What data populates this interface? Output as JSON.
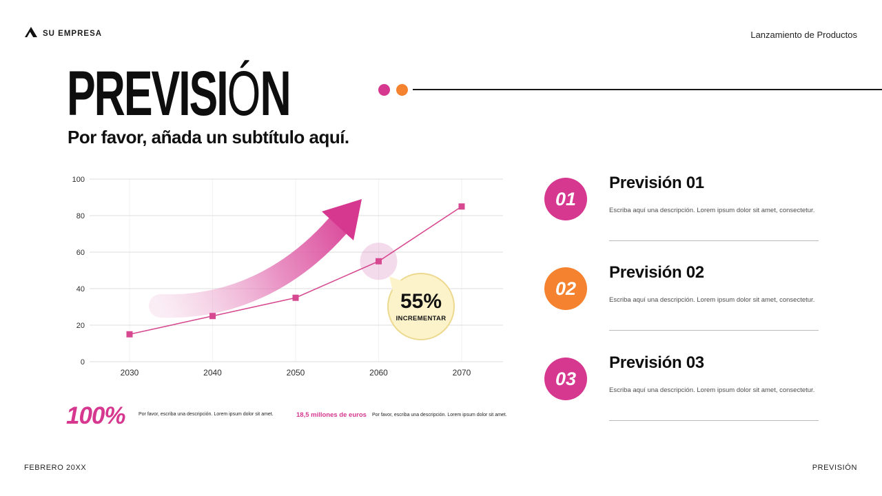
{
  "header": {
    "company": "SU EMPRESA",
    "event": "Lanzamiento de Productos"
  },
  "title": {
    "part1": "PREVISI",
    "accent": "Ó",
    "part2": "N",
    "subtitle": "Por favor, añada un subtítulo aquí."
  },
  "chart_data": {
    "type": "line",
    "x": [
      2030,
      2040,
      2050,
      2060,
      2070
    ],
    "series": [
      {
        "name": "Previsión",
        "values": [
          15,
          25,
          35,
          55,
          85
        ]
      }
    ],
    "ylim": [
      0,
      100
    ],
    "yticks": [
      0,
      20,
      40,
      60,
      80,
      100
    ],
    "grid": true,
    "line_color": "#d6488f",
    "marker": "square",
    "annotation": {
      "x": 2060,
      "value": "55%",
      "label": "INCREMENTAR"
    }
  },
  "stats": [
    {
      "value": "100%",
      "description": "Por favor, escriba una descripción. Lorem ipsum dolor sit amet."
    },
    {
      "value": "18,5 millones de euros",
      "description": "Por favor, escriba una descripción. Lorem ipsum dolor sit amet."
    }
  ],
  "forecast_items": [
    {
      "number": "01",
      "title": "Previsión 01",
      "description": "Escriba aquí una descripción. Lorem ipsum dolor sit amet, consectetur.",
      "color": "#d6378f"
    },
    {
      "number": "02",
      "title": "Previsión 02",
      "description": "Escriba aquí una descripción. Lorem ipsum dolor sit amet, consectetur.",
      "color": "#f5822e"
    },
    {
      "number": "03",
      "title": "Previsión 03",
      "description": "Escriba aquí una descripción. Lorem ipsum dolor sit amet, consectetur.",
      "color": "#d6378f"
    }
  ],
  "footer": {
    "left": "FEBRERO 20XX",
    "right": "PREVISIÓN"
  },
  "colors": {
    "pink": "#d6378f",
    "orange": "#f5822e",
    "bubble_fill": "#fcf3cb",
    "bubble_border": "#ecd98f"
  }
}
